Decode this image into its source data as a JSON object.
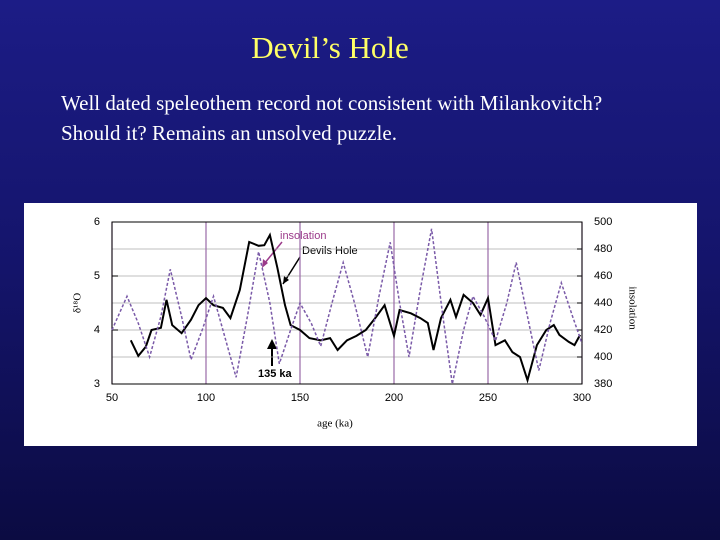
{
  "slide": {
    "title": "Devil’s Hole",
    "body": [
      "Well dated speleothem record not consistent with Milankovitch?",
      "Should it?  Remains an unsolved puzzle."
    ]
  },
  "chart_data": {
    "type": "line",
    "xlabel": "age (ka)",
    "ylabel": "δ¹⁸O",
    "y2label": "insolation",
    "xlim": [
      50,
      300
    ],
    "xticks": [
      50,
      100,
      150,
      200,
      250,
      300
    ],
    "ylim": [
      3,
      6
    ],
    "yticks": [
      3,
      4,
      5,
      6
    ],
    "y2lim": [
      380,
      500
    ],
    "y2ticks": [
      380,
      400,
      420,
      440,
      460,
      480,
      500
    ],
    "grid": true,
    "series": [
      {
        "name": "Devils Hole",
        "color": "#000000",
        "dashed": false,
        "x": [
          60,
          64,
          68,
          71,
          76,
          79,
          82,
          87,
          92,
          96,
          100,
          104,
          109,
          113,
          118,
          123,
          128,
          131,
          134,
          138,
          142,
          145,
          150,
          155,
          161,
          166,
          170,
          175,
          180,
          185,
          190,
          195,
          200,
          203,
          209,
          214,
          218,
          221,
          225,
          230,
          233,
          237,
          242,
          246,
          250,
          254,
          259,
          263,
          267,
          271,
          276,
          281,
          285,
          288,
          293,
          296,
          299
        ],
        "values": [
          3.81,
          3.52,
          3.69,
          4.0,
          4.04,
          4.56,
          4.09,
          3.94,
          4.19,
          4.46,
          4.59,
          4.46,
          4.41,
          4.22,
          4.74,
          5.63,
          5.56,
          5.57,
          5.76,
          5.15,
          4.46,
          4.09,
          4.0,
          3.85,
          3.81,
          3.85,
          3.63,
          3.81,
          3.89,
          4.0,
          4.22,
          4.46,
          3.89,
          4.37,
          4.31,
          4.22,
          4.13,
          3.63,
          4.22,
          4.56,
          4.24,
          4.65,
          4.5,
          4.28,
          4.59,
          3.72,
          3.81,
          3.59,
          3.5,
          3.07,
          3.72,
          4.0,
          4.09,
          3.91,
          3.78,
          3.72,
          3.91
        ]
      },
      {
        "name": "insolation",
        "color": "#7a5aa8",
        "dashed": true,
        "axis": "y2",
        "x": [
          50,
          58,
          64,
          70,
          76,
          81,
          87,
          92,
          98,
          104,
          110,
          116,
          122,
          128,
          134,
          139,
          145,
          150,
          156,
          161,
          167,
          173,
          179,
          186,
          192,
          198,
          203,
          208,
          214,
          220,
          226,
          231,
          237,
          242,
          248,
          254,
          260,
          265,
          271,
          277,
          283,
          289,
          295,
          300
        ],
        "values": [
          420,
          445,
          425,
          400,
          430,
          465,
          430,
          398,
          420,
          445,
          415,
          385,
          430,
          478,
          440,
          395,
          420,
          440,
          425,
          408,
          440,
          470,
          440,
          400,
          445,
          485,
          440,
          400,
          450,
          495,
          430,
          380,
          420,
          445,
          430,
          412,
          440,
          470,
          430,
          390,
          425,
          455,
          430,
          410
        ]
      }
    ],
    "annotations": [
      {
        "text": "insolation"
      },
      {
        "text": "Devils Hole"
      },
      {
        "text": "135 ka"
      }
    ]
  }
}
